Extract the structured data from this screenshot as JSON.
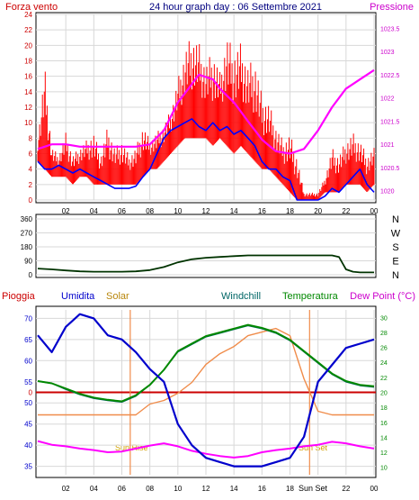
{
  "header": {
    "left_label": "Forza vento",
    "center_title": "24 hour graph day : 06 Settembre 2021",
    "right_label": "Pressione"
  },
  "bottom_header": {
    "labels": [
      "Pioggia",
      "Umidita",
      "Solar",
      "Windchill",
      "Temperatura",
      "Dew Point (°C)"
    ]
  },
  "annotations": {
    "sun_rise": "Sun Rise",
    "sun_set": "Sun Set",
    "sun_set_tick": "Sun Set"
  },
  "colors": {
    "wind": "#ff0000",
    "gust_avg": "#0000ff",
    "pressure": "#ff00ff",
    "direction": "#003300",
    "humidity": "#0000cc",
    "solar": "#f08c4a",
    "windchill": "#006666",
    "temperature": "#008800",
    "dewpoint": "#ff00ff",
    "rain": "#cc0000",
    "grid": "#d8d8d8"
  },
  "chart_data": [
    {
      "type": "line",
      "name": "wind-pressure",
      "x_ticks": [
        "02",
        "04",
        "06",
        "08",
        "10",
        "12",
        "14",
        "16",
        "18",
        "20",
        "22",
        "00"
      ],
      "left_ticks": [
        "0",
        "2",
        "4",
        "6",
        "8",
        "10",
        "12",
        "14",
        "16",
        "18",
        "20",
        "22",
        "24"
      ],
      "right_ticks": [
        "1020",
        "1020.5",
        "1021",
        "1021.5",
        "1022",
        "1022.5",
        "1023",
        "1023.5"
      ],
      "ylim_left": [
        0,
        24
      ],
      "ylim_right": [
        1019.8,
        1023.8
      ],
      "hours_wind": [
        0,
        0.5,
        1,
        1.5,
        2,
        2.5,
        3,
        3.5,
        4,
        4.5,
        5,
        5.5,
        6,
        6.5,
        7,
        7.5,
        8,
        8.5,
        9,
        9.5,
        10,
        10.5,
        11,
        11.5,
        12,
        12.5,
        13,
        13.5,
        14,
        14.5,
        15,
        15.5,
        16,
        16.5,
        17,
        17.5,
        18,
        18.5,
        19,
        19.5,
        20,
        20.5,
        21,
        21.5,
        22,
        22.5,
        23,
        23.5,
        24
      ],
      "wind_max": [
        8,
        18,
        7,
        6,
        9,
        6,
        7,
        8,
        9,
        6,
        10,
        7,
        8,
        6,
        7,
        10,
        8,
        9,
        10,
        12,
        16,
        20,
        22,
        21,
        18,
        20,
        17,
        22,
        20,
        21,
        18,
        19,
        14,
        13,
        10,
        8,
        9,
        6,
        1,
        1,
        1,
        3,
        7,
        6,
        8,
        9,
        8,
        6,
        7
      ],
      "wind_min": [
        5,
        4,
        3,
        3,
        3,
        2,
        3,
        3,
        2,
        2,
        2,
        2,
        2,
        2,
        2,
        3,
        4,
        4,
        5,
        6,
        7,
        8,
        8,
        8,
        8,
        7,
        8,
        7,
        6,
        7,
        6,
        5,
        4,
        4,
        3,
        2,
        1,
        0,
        0,
        0,
        0,
        1,
        1,
        1,
        2,
        2,
        2,
        1,
        2
      ],
      "gust_avg": [
        5,
        4,
        4,
        4.5,
        4,
        3.5,
        4,
        3.5,
        3,
        2.5,
        2,
        1.5,
        1.5,
        1.5,
        1.8,
        3,
        4,
        6,
        8,
        9,
        9.5,
        10,
        10.5,
        9.5,
        9,
        10,
        9,
        9.5,
        8.5,
        9,
        8,
        7,
        5,
        4,
        4,
        3,
        2.5,
        0,
        0,
        0,
        0,
        0.5,
        1.5,
        1,
        2,
        3,
        4,
        2,
        1
      ],
      "hours_press": [
        0,
        1,
        2,
        3,
        4,
        5,
        6,
        7,
        8,
        9,
        10,
        11,
        11.5,
        12,
        12.5,
        13,
        14,
        15,
        16,
        17,
        18,
        19,
        20,
        21,
        22,
        23,
        24
      ],
      "pressure": [
        1020.9,
        1021.0,
        1021.0,
        1020.95,
        1020.95,
        1020.95,
        1020.95,
        1020.95,
        1021.0,
        1021.3,
        1021.9,
        1022.3,
        1022.5,
        1022.45,
        1022.4,
        1022.2,
        1021.9,
        1021.5,
        1021.1,
        1020.85,
        1020.8,
        1020.9,
        1021.3,
        1021.8,
        1022.2,
        1022.4,
        1022.6
      ]
    },
    {
      "type": "line",
      "name": "wind-direction",
      "left_ticks": [
        "0",
        "90",
        "180",
        "270",
        "360"
      ],
      "right_labels": [
        "N",
        "W",
        "S",
        "E",
        "N"
      ],
      "ylim": [
        0,
        360
      ],
      "hours": [
        0,
        1,
        2,
        3,
        4,
        5,
        6,
        7,
        8,
        9,
        10,
        11,
        12,
        13,
        14,
        15,
        16,
        17,
        18,
        19,
        20,
        21,
        21.5,
        22,
        22.5,
        23,
        24
      ],
      "direction": [
        40,
        35,
        28,
        22,
        20,
        20,
        20,
        22,
        30,
        50,
        80,
        100,
        110,
        115,
        120,
        125,
        125,
        125,
        125,
        125,
        125,
        125,
        115,
        35,
        20,
        15,
        15
      ]
    },
    {
      "type": "line",
      "name": "temp-humidity",
      "left_ticks": [
        "35",
        "40",
        "45",
        "50",
        "55",
        "60",
        "65",
        "70"
      ],
      "right_ticks": [
        "10",
        "12",
        "14",
        "16",
        "18",
        "20",
        "22",
        "24",
        "26",
        "28",
        "30"
      ],
      "ylim_left": [
        33,
        72
      ],
      "ylim_right": [
        9,
        31
      ],
      "hours": [
        0,
        1,
        2,
        3,
        4,
        5,
        6,
        7,
        8,
        9,
        10,
        11,
        12,
        13,
        14,
        15,
        16,
        17,
        18,
        19,
        20,
        21,
        22,
        23,
        24
      ],
      "humidity": [
        66,
        62,
        68,
        71,
        70,
        66,
        65,
        62,
        58,
        55,
        45,
        40,
        37,
        36,
        35,
        35,
        35,
        36,
        37,
        42,
        55,
        59,
        63,
        64,
        65
      ],
      "temperature": [
        21.5,
        21.2,
        20.5,
        19.8,
        19.3,
        19,
        18.8,
        19.6,
        21,
        23,
        25.5,
        26.5,
        27.5,
        28,
        28.5,
        29,
        28.6,
        28,
        27,
        25.5,
        24,
        22.5,
        21.5,
        21,
        20.8
      ],
      "windchill": [
        21.5,
        21.2,
        20.4,
        19.7,
        19.2,
        18.9,
        18.7,
        19.5,
        21,
        23,
        25.4,
        26.4,
        27.4,
        27.9,
        28.4,
        28.9,
        28.5,
        27.9,
        26.9,
        25.4,
        23.9,
        22.4,
        21.4,
        20.9,
        20.7
      ],
      "dewpoint": [
        13.5,
        13,
        12.8,
        12.5,
        12.3,
        12,
        12.1,
        12.5,
        12.9,
        13.2,
        12.8,
        12.2,
        11.8,
        11.5,
        11.3,
        11.5,
        12,
        12.3,
        12.5,
        12.8,
        13,
        13.4,
        13.2,
        12.8,
        12.5
      ],
      "solar": [
        0,
        0,
        0,
        0,
        0,
        0,
        0,
        0,
        3,
        4,
        6,
        9,
        14,
        17,
        19,
        22,
        23,
        24,
        22,
        10,
        1,
        0,
        0,
        0,
        0
      ],
      "rain_level": 0,
      "sunrise_hour": 6.6,
      "sunset_hour": 19.4
    }
  ]
}
